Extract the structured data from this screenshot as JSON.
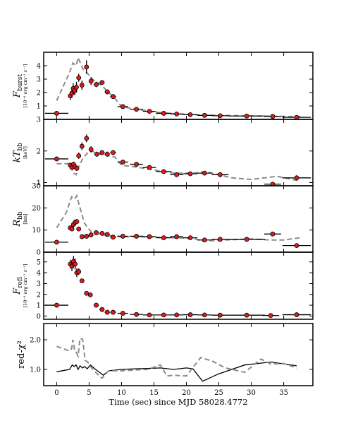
{
  "chart_data": [
    {
      "type": "scatter",
      "ylabel": "F_burst",
      "ylabel_main": "F",
      "ylabel_sub": "burst",
      "ylabel_unit": "[10⁻⁸ erg cm⁻² s⁻¹]",
      "ylim": [
        0,
        5
      ],
      "yticks": [
        "1",
        "2",
        "3",
        "4"
      ],
      "ytick_values": [
        1,
        2,
        3,
        4
      ],
      "points": [
        {
          "x": 0.0,
          "y": 0.45,
          "xerr": 1.8,
          "yerr": 0.05
        },
        {
          "x": 2.1,
          "y": 1.75,
          "xerr": 0.12,
          "yerr": 0.3
        },
        {
          "x": 2.35,
          "y": 1.95,
          "xerr": 0.12,
          "yerr": 0.35
        },
        {
          "x": 2.55,
          "y": 2.3,
          "xerr": 0.12,
          "yerr": 0.4
        },
        {
          "x": 2.8,
          "y": 2.15,
          "xerr": 0.12,
          "yerr": 0.35
        },
        {
          "x": 3.05,
          "y": 2.4,
          "xerr": 0.12,
          "yerr": 0.4
        },
        {
          "x": 3.4,
          "y": 3.1,
          "xerr": 0.2,
          "yerr": 0.3
        },
        {
          "x": 3.9,
          "y": 2.55,
          "xerr": 0.25,
          "yerr": 0.35
        },
        {
          "x": 4.6,
          "y": 3.9,
          "xerr": 0.35,
          "yerr": 0.5
        },
        {
          "x": 5.3,
          "y": 2.85,
          "xerr": 0.35,
          "yerr": 0.3
        },
        {
          "x": 6.1,
          "y": 2.6,
          "xerr": 0.4,
          "yerr": 0.2
        },
        {
          "x": 7.0,
          "y": 2.75,
          "xerr": 0.4,
          "yerr": 0.15
        },
        {
          "x": 7.8,
          "y": 2.05,
          "xerr": 0.4,
          "yerr": 0.1
        },
        {
          "x": 8.7,
          "y": 1.7,
          "xerr": 0.45,
          "yerr": 0.1
        },
        {
          "x": 10.2,
          "y": 0.95,
          "xerr": 0.8,
          "yerr": 0.05
        },
        {
          "x": 12.3,
          "y": 0.75,
          "xerr": 1.0,
          "yerr": 0.05
        },
        {
          "x": 14.3,
          "y": 0.6,
          "xerr": 1.0,
          "yerr": 0.05
        },
        {
          "x": 16.5,
          "y": 0.45,
          "xerr": 1.2,
          "yerr": 0.04
        },
        {
          "x": 18.5,
          "y": 0.4,
          "xerr": 1.0,
          "yerr": 0.04
        },
        {
          "x": 20.6,
          "y": 0.35,
          "xerr": 1.1,
          "yerr": 0.04
        },
        {
          "x": 22.8,
          "y": 0.3,
          "xerr": 1.1,
          "yerr": 0.04
        },
        {
          "x": 25.2,
          "y": 0.27,
          "xerr": 1.3,
          "yerr": 0.04
        },
        {
          "x": 29.3,
          "y": 0.25,
          "xerr": 2.8,
          "yerr": 0.04
        },
        {
          "x": 33.3,
          "y": 0.22,
          "xerr": 1.3,
          "yerr": 0.04
        },
        {
          "x": 37.0,
          "y": 0.15,
          "xerr": 2.2,
          "yerr": 0.04
        }
      ],
      "model": {
        "x": [
          0,
          2,
          2.5,
          3,
          3.3,
          4,
          4.8,
          5.5,
          6.3,
          7.2,
          8,
          9,
          10,
          12,
          15,
          18,
          22,
          27,
          33,
          38
        ],
        "y": [
          1.4,
          3.5,
          4.2,
          4.0,
          4.6,
          3.8,
          3.4,
          3.0,
          2.75,
          2.4,
          2.0,
          1.55,
          0.95,
          0.78,
          0.55,
          0.42,
          0.33,
          0.28,
          0.24,
          0.2
        ]
      }
    },
    {
      "type": "scatter",
      "ylabel": "kT_bb",
      "ylabel_main": "kT",
      "ylabel_sub": "bb",
      "ylabel_unit": "[keV]",
      "ylim": [
        0.9,
        3.0
      ],
      "yticks": [
        "1",
        "2",
        "3"
      ],
      "ytick_values": [
        1,
        2,
        3
      ],
      "points": [
        {
          "x": 0.0,
          "y": 1.75,
          "xerr": 1.8,
          "yerr": 0.05
        },
        {
          "x": 2.1,
          "y": 1.55,
          "xerr": 0.12,
          "yerr": 0.08
        },
        {
          "x": 2.35,
          "y": 1.48,
          "xerr": 0.12,
          "yerr": 0.08
        },
        {
          "x": 2.6,
          "y": 1.58,
          "xerr": 0.12,
          "yerr": 0.08
        },
        {
          "x": 2.85,
          "y": 1.5,
          "xerr": 0.12,
          "yerr": 0.08
        },
        {
          "x": 3.1,
          "y": 1.45,
          "xerr": 0.12,
          "yerr": 0.08
        },
        {
          "x": 3.4,
          "y": 1.85,
          "xerr": 0.2,
          "yerr": 0.1
        },
        {
          "x": 3.9,
          "y": 2.15,
          "xerr": 0.25,
          "yerr": 0.12
        },
        {
          "x": 4.6,
          "y": 2.4,
          "xerr": 0.35,
          "yerr": 0.12
        },
        {
          "x": 5.3,
          "y": 2.05,
          "xerr": 0.35,
          "yerr": 0.1
        },
        {
          "x": 6.2,
          "y": 1.9,
          "xerr": 0.4,
          "yerr": 0.08
        },
        {
          "x": 7.0,
          "y": 1.95,
          "xerr": 0.4,
          "yerr": 0.08
        },
        {
          "x": 7.8,
          "y": 1.9,
          "xerr": 0.4,
          "yerr": 0.08
        },
        {
          "x": 8.7,
          "y": 1.95,
          "xerr": 0.45,
          "yerr": 0.08
        },
        {
          "x": 10.2,
          "y": 1.65,
          "xerr": 0.8,
          "yerr": 0.06
        },
        {
          "x": 12.3,
          "y": 1.58,
          "xerr": 1.0,
          "yerr": 0.06
        },
        {
          "x": 14.3,
          "y": 1.48,
          "xerr": 1.0,
          "yerr": 0.06
        },
        {
          "x": 16.5,
          "y": 1.35,
          "xerr": 1.2,
          "yerr": 0.06
        },
        {
          "x": 18.5,
          "y": 1.25,
          "xerr": 1.0,
          "yerr": 0.06
        },
        {
          "x": 20.6,
          "y": 1.28,
          "xerr": 1.1,
          "yerr": 0.06
        },
        {
          "x": 22.8,
          "y": 1.3,
          "xerr": 1.1,
          "yerr": 0.06
        },
        {
          "x": 25.2,
          "y": 1.25,
          "xerr": 1.3,
          "yerr": 0.06
        },
        {
          "x": 33.3,
          "y": 0.95,
          "xerr": 1.3,
          "yerr": 0.05
        },
        {
          "x": 37.0,
          "y": 1.15,
          "xerr": 2.2,
          "yerr": 0.08
        }
      ],
      "model": {
        "x": [
          0,
          2,
          2.6,
          3,
          3.4,
          4,
          4.8,
          5.5,
          6.3,
          7.2,
          8,
          9,
          10,
          12,
          15,
          18,
          21,
          23,
          27,
          30,
          32,
          34,
          37.5
        ],
        "y": [
          1.6,
          1.6,
          1.3,
          1.25,
          1.5,
          1.75,
          1.95,
          2.0,
          1.9,
          1.9,
          1.85,
          1.8,
          1.55,
          1.5,
          1.4,
          1.3,
          1.3,
          1.35,
          1.15,
          1.1,
          1.15,
          1.2,
          1.05
        ]
      }
    },
    {
      "type": "scatter",
      "ylabel": "R_bb",
      "ylabel_main": "R",
      "ylabel_sub": "bb",
      "ylabel_unit": "[km]",
      "ylim": [
        0,
        30
      ],
      "yticks": [
        "0",
        "10",
        "20",
        "30"
      ],
      "ytick_values": [
        0,
        10,
        20,
        30
      ],
      "points": [
        {
          "x": 0.0,
          "y": 4.5,
          "xerr": 1.8,
          "yerr": 0.5
        },
        {
          "x": 2.1,
          "y": 11.0,
          "xerr": 0.12,
          "yerr": 1.0
        },
        {
          "x": 2.35,
          "y": 10.5,
          "xerr": 0.12,
          "yerr": 1.0
        },
        {
          "x": 2.6,
          "y": 12.5,
          "xerr": 0.12,
          "yerr": 1.2
        },
        {
          "x": 2.85,
          "y": 13.5,
          "xerr": 0.12,
          "yerr": 1.2
        },
        {
          "x": 3.1,
          "y": 13.8,
          "xerr": 0.12,
          "yerr": 1.2
        },
        {
          "x": 3.4,
          "y": 10.5,
          "xerr": 0.2,
          "yerr": 1.0
        },
        {
          "x": 3.9,
          "y": 7.0,
          "xerr": 0.25,
          "yerr": 0.8
        },
        {
          "x": 4.6,
          "y": 7.2,
          "xerr": 0.35,
          "yerr": 0.8
        },
        {
          "x": 5.3,
          "y": 7.8,
          "xerr": 0.35,
          "yerr": 0.8
        },
        {
          "x": 6.1,
          "y": 8.8,
          "xerr": 0.4,
          "yerr": 0.6
        },
        {
          "x": 7.0,
          "y": 8.5,
          "xerr": 0.4,
          "yerr": 0.6
        },
        {
          "x": 7.8,
          "y": 8.0,
          "xerr": 0.4,
          "yerr": 0.6
        },
        {
          "x": 8.7,
          "y": 6.8,
          "xerr": 0.45,
          "yerr": 0.5
        },
        {
          "x": 10.2,
          "y": 7.2,
          "xerr": 0.8,
          "yerr": 0.5
        },
        {
          "x": 12.3,
          "y": 7.2,
          "xerr": 1.0,
          "yerr": 0.5
        },
        {
          "x": 14.3,
          "y": 7.0,
          "xerr": 1.0,
          "yerr": 0.5
        },
        {
          "x": 16.5,
          "y": 6.5,
          "xerr": 1.2,
          "yerr": 0.5
        },
        {
          "x": 18.5,
          "y": 7.0,
          "xerr": 1.0,
          "yerr": 0.5
        },
        {
          "x": 20.6,
          "y": 6.5,
          "xerr": 1.1,
          "yerr": 0.5
        },
        {
          "x": 22.8,
          "y": 5.5,
          "xerr": 1.1,
          "yerr": 0.5
        },
        {
          "x": 25.2,
          "y": 5.8,
          "xerr": 1.3,
          "yerr": 0.5
        },
        {
          "x": 29.3,
          "y": 5.8,
          "xerr": 2.8,
          "yerr": 0.5
        },
        {
          "x": 33.3,
          "y": 8.2,
          "xerr": 1.3,
          "yerr": 0.6
        },
        {
          "x": 37.0,
          "y": 3.0,
          "xerr": 2.2,
          "yerr": 0.5
        }
      ],
      "model": {
        "x": [
          0,
          1.5,
          2.3,
          2.8,
          3.1,
          3.5,
          4.3,
          5.5,
          6.5,
          8,
          10,
          12,
          15,
          18,
          21,
          22.5,
          26,
          30,
          33,
          35,
          37.5
        ],
        "y": [
          11,
          18,
          25,
          24,
          25.5,
          21,
          13,
          8.5,
          8.0,
          7.5,
          7.0,
          7.0,
          6.8,
          6.5,
          6.3,
          5.0,
          5.5,
          6.0,
          5.5,
          5.5,
          6.5
        ]
      }
    },
    {
      "type": "scatter",
      "ylabel": "F_refl",
      "ylabel_main": "F",
      "ylabel_sub": "refl",
      "ylabel_unit": "[10⁻⁸ erg cm⁻² s⁻¹]",
      "ylim": [
        -0.3,
        5.9
      ],
      "yticks": [
        "0",
        "1",
        "2",
        "3",
        "4",
        "5"
      ],
      "ytick_values": [
        0,
        1,
        2,
        3,
        4,
        5
      ],
      "points": [
        {
          "x": 0.0,
          "y": 1.0,
          "xerr": 1.8,
          "yerr": 0.05
        },
        {
          "x": 2.1,
          "y": 4.8,
          "xerr": 0.12,
          "yerr": 0.4
        },
        {
          "x": 2.35,
          "y": 4.6,
          "xerr": 0.12,
          "yerr": 0.45
        },
        {
          "x": 2.6,
          "y": 5.05,
          "xerr": 0.12,
          "yerr": 0.5
        },
        {
          "x": 2.85,
          "y": 4.8,
          "xerr": 0.12,
          "yerr": 0.5
        },
        {
          "x": 3.1,
          "y": 4.0,
          "xerr": 0.12,
          "yerr": 0.4
        },
        {
          "x": 3.4,
          "y": 4.1,
          "xerr": 0.2,
          "yerr": 0.3
        },
        {
          "x": 3.9,
          "y": 3.25,
          "xerr": 0.25,
          "yerr": 0.15
        },
        {
          "x": 4.6,
          "y": 2.1,
          "xerr": 0.35,
          "yerr": 0.1
        },
        {
          "x": 5.2,
          "y": 1.95,
          "xerr": 0.35,
          "yerr": 0.1
        },
        {
          "x": 6.1,
          "y": 1.0,
          "xerr": 0.4,
          "yerr": 0.05
        },
        {
          "x": 7.0,
          "y": 0.6,
          "xerr": 0.4,
          "yerr": 0.05
        },
        {
          "x": 7.8,
          "y": 0.35,
          "xerr": 0.4,
          "yerr": 0.05
        },
        {
          "x": 8.7,
          "y": 0.35,
          "xerr": 0.45,
          "yerr": 0.05
        },
        {
          "x": 10.2,
          "y": 0.25,
          "xerr": 0.8,
          "yerr": 0.04
        },
        {
          "x": 12.3,
          "y": 0.15,
          "xerr": 1.0,
          "yerr": 0.04
        },
        {
          "x": 14.3,
          "y": 0.1,
          "xerr": 1.0,
          "yerr": 0.04
        },
        {
          "x": 16.5,
          "y": 0.1,
          "xerr": 1.2,
          "yerr": 0.04
        },
        {
          "x": 18.5,
          "y": 0.1,
          "xerr": 1.0,
          "yerr": 0.04
        },
        {
          "x": 20.6,
          "y": 0.12,
          "xerr": 1.1,
          "yerr": 0.04
        },
        {
          "x": 22.8,
          "y": 0.1,
          "xerr": 1.1,
          "yerr": 0.04
        },
        {
          "x": 25.2,
          "y": 0.08,
          "xerr": 1.3,
          "yerr": 0.04
        },
        {
          "x": 29.3,
          "y": 0.08,
          "xerr": 2.8,
          "yerr": 0.04
        },
        {
          "x": 33.0,
          "y": 0.05,
          "xerr": 1.3,
          "yerr": 0.04
        },
        {
          "x": 37.0,
          "y": 0.12,
          "xerr": 2.2,
          "yerr": 0.04
        }
      ]
    },
    {
      "type": "line",
      "ylabel": "red-χ²",
      "ylim": [
        0.45,
        2.55
      ],
      "yticks": [
        "1.0",
        "2.0"
      ],
      "ytick_values": [
        1.0,
        2.0
      ],
      "series": [
        {
          "style": "solid",
          "color": "#000000",
          "x": [
            0,
            2.0,
            2.4,
            2.7,
            3.0,
            3.3,
            3.6,
            4.0,
            4.3,
            4.7,
            5.2,
            6.0,
            7.2,
            8.0,
            10,
            12,
            14,
            16,
            18,
            20,
            21,
            22.5,
            25,
            29,
            33,
            37
          ],
          "y": [
            0.92,
            1.0,
            1.15,
            1.1,
            1.15,
            1.0,
            1.12,
            1.05,
            1.1,
            1.02,
            1.15,
            1.0,
            0.8,
            0.95,
            1.0,
            1.02,
            1.03,
            1.05,
            1.0,
            1.05,
            1.02,
            0.6,
            0.85,
            1.15,
            1.25,
            1.12
          ]
        },
        {
          "style": "dashed",
          "color": "#808080",
          "x": [
            0,
            2.0,
            2.3,
            2.5,
            2.8,
            3.0,
            3.3,
            3.6,
            4.0,
            4.4,
            4.8,
            5.2,
            6.0,
            7.0,
            8.0,
            10,
            12,
            14,
            16,
            17,
            18,
            20,
            22.2,
            24,
            26,
            29,
            31.5,
            33,
            35,
            37
          ],
          "y": [
            1.78,
            1.62,
            1.7,
            2.0,
            1.6,
            1.58,
            1.45,
            2.05,
            2.02,
            1.3,
            1.25,
            1.1,
            0.9,
            0.7,
            0.95,
            0.95,
            0.98,
            1.0,
            1.15,
            0.78,
            0.8,
            0.78,
            1.4,
            1.28,
            1.05,
            0.9,
            1.35,
            1.18,
            1.2,
            1.05
          ]
        }
      ]
    }
  ],
  "x_axis": {
    "xlim": [
      -2,
      39.5
    ],
    "ticks": [
      "0",
      "5",
      "10",
      "15",
      "20",
      "25",
      "30",
      "35"
    ],
    "tick_values": [
      0,
      5,
      10,
      15,
      20,
      25,
      30,
      35
    ],
    "label": "Time (sec) since MJD 58028.4772"
  },
  "colors": {
    "marker_fill": "#e31a1c",
    "model_line": "#8c8c8c",
    "chi_solid": "#000000"
  }
}
